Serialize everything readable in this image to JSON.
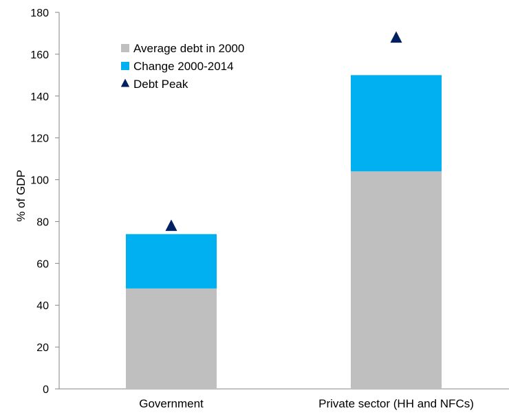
{
  "chart_data": {
    "type": "bar",
    "stacked": true,
    "categories": [
      "Government",
      "Private sector (HH and NFCs)"
    ],
    "series": [
      {
        "name": "Average debt in 2000",
        "kind": "bar",
        "values": [
          48,
          104
        ],
        "color": "#bfbfbf"
      },
      {
        "name": "Change 2000-2014",
        "kind": "bar",
        "values": [
          26,
          46
        ],
        "color": "#00b0f0"
      },
      {
        "name": "Debt Peak",
        "kind": "marker",
        "marker": "triangle",
        "values": [
          78,
          168
        ],
        "color": "#002060"
      }
    ],
    "title": "",
    "xlabel": "",
    "ylabel": "% of GDP",
    "ylim": [
      0,
      180
    ],
    "yticks": [
      0,
      20,
      40,
      60,
      80,
      100,
      120,
      140,
      160,
      180
    ],
    "grid": false,
    "legend_position": "top-left"
  }
}
